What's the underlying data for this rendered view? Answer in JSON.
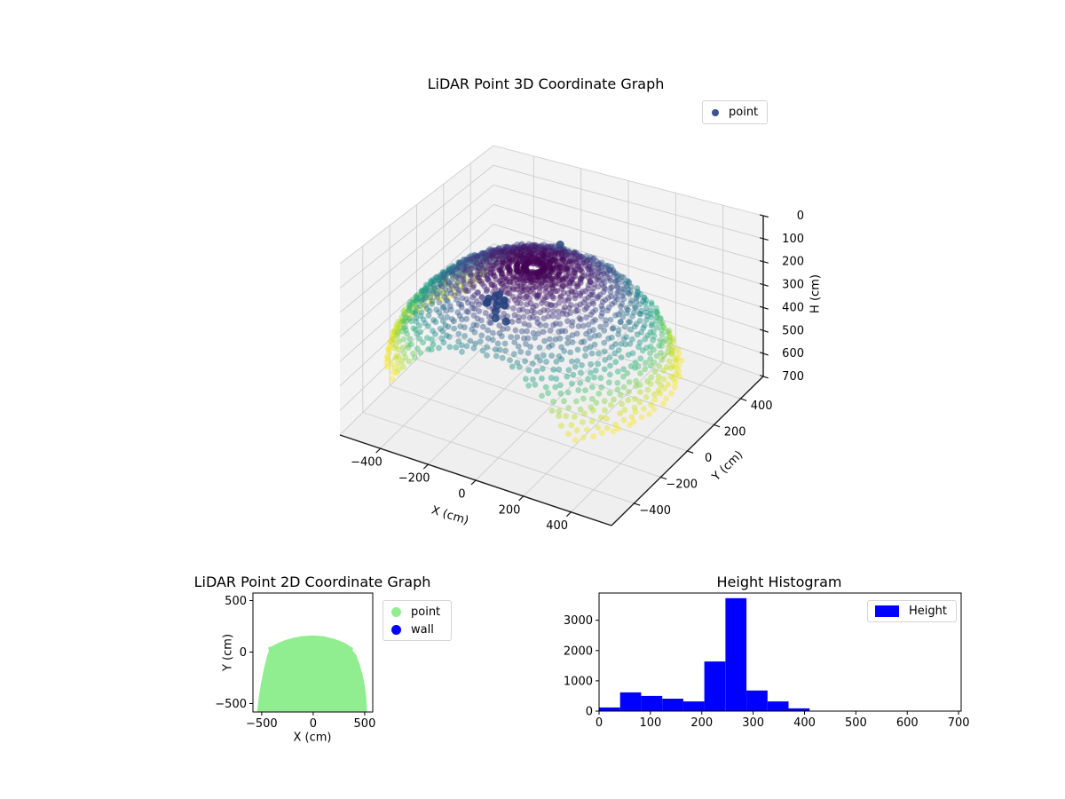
{
  "figure": {
    "background": "#ffffff"
  },
  "chart_data": [
    {
      "id": "lidar-3d",
      "type": "scatter3d",
      "title": "LiDAR Point 3D Coordinate Graph",
      "xlabel": "X (cm)",
      "ylabel": "Y (cm)",
      "zlabel": "H (cm)",
      "xlim": [
        -570,
        570
      ],
      "ylim": [
        -570,
        570
      ],
      "zlim": [
        0,
        700
      ],
      "z_axis_inverted": true,
      "xticks": [
        -400,
        -200,
        0,
        200,
        400
      ],
      "yticks": [
        -400,
        -200,
        0,
        200,
        400
      ],
      "zticks": [
        0,
        100,
        200,
        300,
        400,
        500,
        600,
        700
      ],
      "grid": true,
      "legend": [
        {
          "label": "point",
          "color": "#3a548c"
        }
      ],
      "colormap": "viridis",
      "cloud": {
        "description": "LiDAR dome point cloud: spherical scan rings colored by height H (viridis, dark purple at H=0 apex to yellow at H=410 rim), clipped at y=160",
        "center_x": 20,
        "center_y": -170,
        "radius": 555,
        "theta_min_deg": 4,
        "theta_max_deg": 75,
        "rings": 25,
        "azimuths": 88,
        "h_max": 410,
        "y_clip": 160,
        "dot_radius": 3.4,
        "alpha": 0.45
      },
      "wall_points": [
        [
          -290,
          40,
          350
        ],
        [
          -270,
          55,
          345
        ],
        [
          -252,
          45,
          352
        ],
        [
          -235,
          60,
          350
        ],
        [
          -245,
          25,
          358
        ],
        [
          -262,
          70,
          340
        ],
        [
          -280,
          15,
          350
        ],
        [
          -225,
          45,
          362
        ],
        [
          -300,
          42,
          375
        ],
        [
          -258,
          35,
          395
        ],
        [
          -245,
          12,
          408
        ],
        [
          -180,
          -25,
          380
        ],
        [
          0,
          60,
          25
        ]
      ],
      "wall_color": "#25427e"
    },
    {
      "id": "lidar-2d",
      "type": "scatter",
      "title": "LiDAR Point 2D Coordinate Graph",
      "xlabel": "X (cm)",
      "ylabel": "Y (cm)",
      "xlim": [
        -585,
        578
      ],
      "ylim": [
        -582,
        573
      ],
      "xticks": [
        -500,
        0,
        500
      ],
      "yticks": [
        -500,
        0,
        500
      ],
      "legend": [
        {
          "label": "point",
          "color": "#90ee90"
        },
        {
          "label": "wall",
          "color": "#0000ff"
        }
      ],
      "point_color": "#90ee90",
      "region_outline": [
        [
          -545,
          -582
        ],
        [
          -527,
          -430
        ],
        [
          -505,
          -295
        ],
        [
          -478,
          -160
        ],
        [
          -452,
          -55
        ],
        [
          -430,
          15
        ],
        [
          -438,
          45
        ],
        [
          -400,
          57
        ],
        [
          -345,
          86
        ],
        [
          -275,
          115
        ],
        [
          -190,
          140
        ],
        [
          -95,
          156
        ],
        [
          5,
          162
        ],
        [
          105,
          153
        ],
        [
          205,
          128
        ],
        [
          300,
          92
        ],
        [
          368,
          50
        ],
        [
          388,
          40
        ],
        [
          382,
          18
        ],
        [
          418,
          -28
        ],
        [
          450,
          -115
        ],
        [
          478,
          -215
        ],
        [
          500,
          -320
        ],
        [
          515,
          -430
        ],
        [
          523,
          -582
        ]
      ]
    },
    {
      "id": "height-histogram",
      "type": "bar",
      "title": "Height Histogram",
      "xlabel": "",
      "ylabel": "",
      "xlim": [
        0,
        705
      ],
      "ylim": [
        0,
        3900
      ],
      "xticks": [
        0,
        100,
        200,
        300,
        400,
        500,
        600,
        700
      ],
      "yticks": [
        0,
        1000,
        2000,
        3000
      ],
      "bin_edges": [
        0,
        41,
        82,
        123,
        164,
        205,
        246,
        287,
        328,
        369,
        410
      ],
      "counts": [
        120,
        620,
        500,
        410,
        320,
        1640,
        3730,
        680,
        320,
        90
      ],
      "bar_color": "#0000ff",
      "legend": [
        {
          "label": "Height",
          "color": "#0000ff"
        }
      ]
    }
  ]
}
